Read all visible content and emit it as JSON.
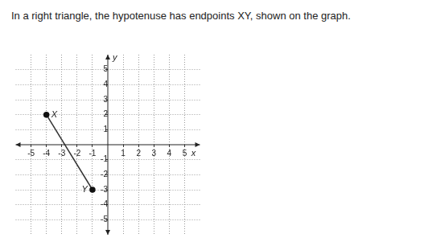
{
  "chart_data": {
    "type": "scatter",
    "title": "In a right triangle, the hypotenuse has endpoints XY, shown on the graph.",
    "x_label": "x",
    "y_label": "y",
    "series": [
      {
        "x": [
          -4,
          -1
        ],
        "values": [
          2,
          -3
        ],
        "color": "#333333",
        "marker": "circle",
        "line_style": "solid"
      }
    ],
    "annotations": [
      {
        "text": "X",
        "x": -4,
        "y": 2
      },
      {
        "text": "Y",
        "x": -1,
        "y": -3
      }
    ],
    "xlim": [
      -6,
      6
    ],
    "ylim": [
      -6,
      6
    ],
    "xticks": [
      -5,
      -4,
      -3,
      -2,
      -1,
      1,
      2,
      3,
      4,
      5
    ],
    "yticks": [
      -5,
      -4,
      -3,
      -2,
      -1,
      1,
      2,
      3,
      4,
      5
    ],
    "grid": true
  }
}
